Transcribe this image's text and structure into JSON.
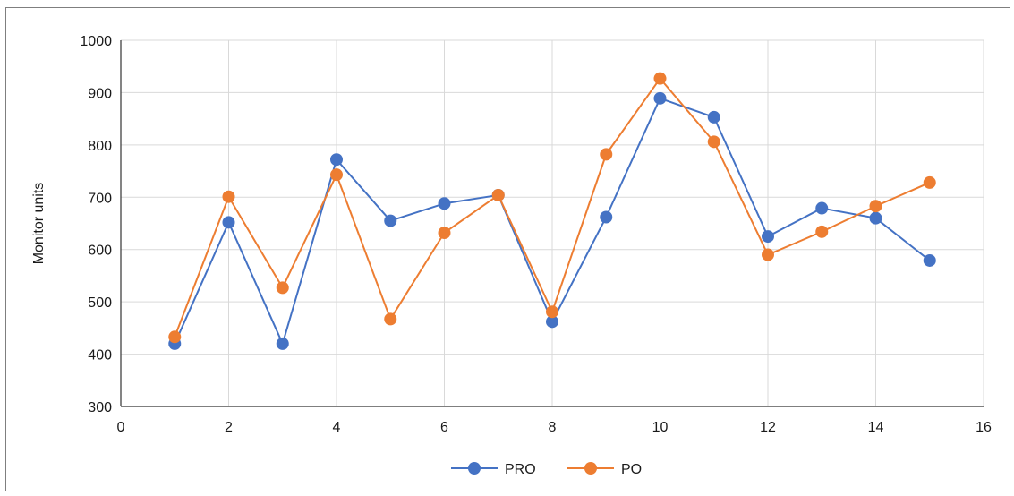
{
  "chart_data": {
    "type": "line",
    "title": "",
    "xlabel": "",
    "ylabel": "Monitor units",
    "xlim": [
      0,
      16
    ],
    "ylim": [
      300,
      1000
    ],
    "x_ticks": [
      0,
      2,
      4,
      6,
      8,
      10,
      12,
      14,
      16
    ],
    "y_ticks": [
      300,
      400,
      500,
      600,
      700,
      800,
      900,
      1000
    ],
    "grid": true,
    "legend_position": "bottom",
    "x": [
      1,
      2,
      3,
      4,
      5,
      6,
      7,
      8,
      9,
      10,
      11,
      12,
      13,
      14,
      15
    ],
    "series": [
      {
        "name": "PRO",
        "color": "#4472c4",
        "values": [
          420,
          652,
          420,
          772,
          655,
          688,
          704,
          462,
          662,
          889,
          853,
          625,
          679,
          660,
          579
        ]
      },
      {
        "name": "PO",
        "color": "#ed7d31",
        "values": [
          433,
          701,
          527,
          743,
          467,
          632,
          704,
          481,
          782,
          927,
          806,
          590,
          634,
          683,
          728
        ]
      }
    ]
  }
}
